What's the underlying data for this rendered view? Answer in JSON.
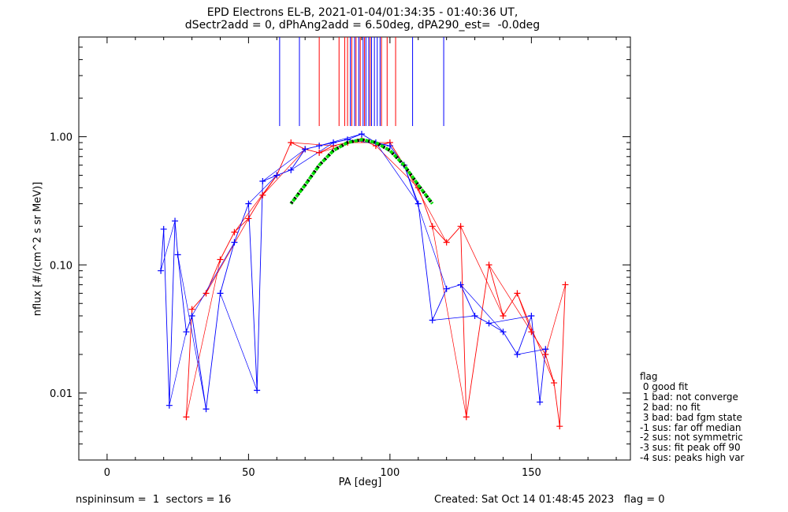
{
  "chart_data": {
    "type": "scatter",
    "title": "EPD Electrons EL-B, 2021-01-04/01:34:35 - 01:40:36 UT,",
    "subtitle": "dSectr2add = 0, dPhAng2add = 6.50deg, dPA290_est=  -0.0deg",
    "xlabel": "PA [deg]",
    "ylabel": "nflux [#/(cm^2 s sr MeV)]",
    "xlim": [
      -10,
      185
    ],
    "ylim": [
      0.003,
      6.0
    ],
    "yscale": "log",
    "x_ticks": [
      0,
      50,
      100,
      150
    ],
    "x_tick_labels": [
      "0",
      "50",
      "100",
      "150"
    ],
    "y_ticks": [
      0.01,
      0.1,
      1.0
    ],
    "y_tick_labels": [
      "0.01",
      "0.10",
      "1.00"
    ],
    "grid": false,
    "colors": {
      "red": "#ff0000",
      "blue": "#0000ff",
      "fit_green": "#00dd00",
      "fit_black": "#000000"
    },
    "series": [
      {
        "color": "red",
        "points": [
          [
            28,
            0.0065
          ],
          [
            30,
            0.045
          ],
          [
            35,
            0.06
          ],
          [
            40,
            0.11
          ],
          [
            45,
            0.18
          ],
          [
            50,
            0.23
          ],
          [
            55,
            0.35
          ],
          [
            60,
            0.5
          ],
          [
            65,
            0.9
          ],
          [
            70,
            0.8
          ],
          [
            75,
            0.75
          ],
          [
            80,
            0.85
          ],
          [
            85,
            0.9
          ],
          [
            90,
            0.95
          ],
          [
            95,
            0.85
          ],
          [
            100,
            0.9
          ],
          [
            105,
            0.6
          ],
          [
            110,
            0.4
          ],
          [
            115,
            0.2
          ],
          [
            120,
            0.15
          ],
          [
            125,
            0.2
          ],
          [
            127,
            0.0065
          ],
          [
            135,
            0.1
          ],
          [
            140,
            0.04
          ],
          [
            145,
            0.06
          ],
          [
            150,
            0.03
          ],
          [
            155,
            0.02
          ],
          [
            158,
            0.012
          ],
          [
            160,
            0.0055
          ],
          [
            162,
            0.07
          ]
        ]
      },
      {
        "color": "blue",
        "points": [
          [
            19,
            0.09
          ],
          [
            20,
            0.19
          ],
          [
            22,
            0.008
          ],
          [
            24,
            0.22
          ],
          [
            25,
            0.12
          ],
          [
            28,
            0.03
          ],
          [
            30,
            0.04
          ],
          [
            35,
            0.0075
          ],
          [
            40,
            0.06
          ],
          [
            45,
            0.15
          ],
          [
            50,
            0.3
          ],
          [
            53,
            0.0105
          ],
          [
            55,
            0.45
          ],
          [
            60,
            0.5
          ],
          [
            65,
            0.55
          ],
          [
            70,
            0.8
          ],
          [
            75,
            0.85
          ],
          [
            80,
            0.9
          ],
          [
            85,
            0.95
          ],
          [
            90,
            1.05
          ],
          [
            95,
            0.9
          ],
          [
            100,
            0.85
          ],
          [
            105,
            0.6
          ],
          [
            110,
            0.3
          ],
          [
            115,
            0.037
          ],
          [
            120,
            0.065
          ],
          [
            125,
            0.07
          ],
          [
            130,
            0.04
          ],
          [
            135,
            0.035
          ],
          [
            140,
            0.03
          ],
          [
            145,
            0.02
          ],
          [
            150,
            0.04
          ],
          [
            153,
            0.0085
          ],
          [
            155,
            0.022
          ]
        ]
      }
    ],
    "fit_curve": {
      "x": [
        65,
        70,
        75,
        80,
        85,
        90,
        95,
        100,
        105,
        110,
        115
      ],
      "y": [
        0.3,
        0.42,
        0.6,
        0.78,
        0.9,
        0.95,
        0.9,
        0.78,
        0.6,
        0.42,
        0.3
      ]
    },
    "vertical_markers": [
      {
        "color": "blue",
        "x": [
          61,
          68,
          86,
          87.5,
          89,
          90.5,
          91.5,
          92.5,
          93.5,
          94.5,
          95.5,
          96.5,
          108,
          119
        ]
      },
      {
        "color": "red",
        "x": [
          75,
          82,
          84,
          85,
          86.5,
          88,
          89.5,
          91,
          93,
          97,
          99,
          102
        ]
      }
    ]
  },
  "legend": {
    "title": "flag",
    "items": [
      " 0 good fit",
      " 1 bad: not converge",
      " 2 bad: no fit",
      " 3 bad: bad fgm state",
      "-1 sus: far off median",
      "-2 sus: not symmetric",
      "-3 sus: fit peak off 90",
      "-4 sus: peaks high var"
    ]
  },
  "footer": {
    "left": "nspininsum =  1  sectors = 16",
    "right": "Created: Sat Oct 14 01:48:45 2023   flag = 0"
  }
}
